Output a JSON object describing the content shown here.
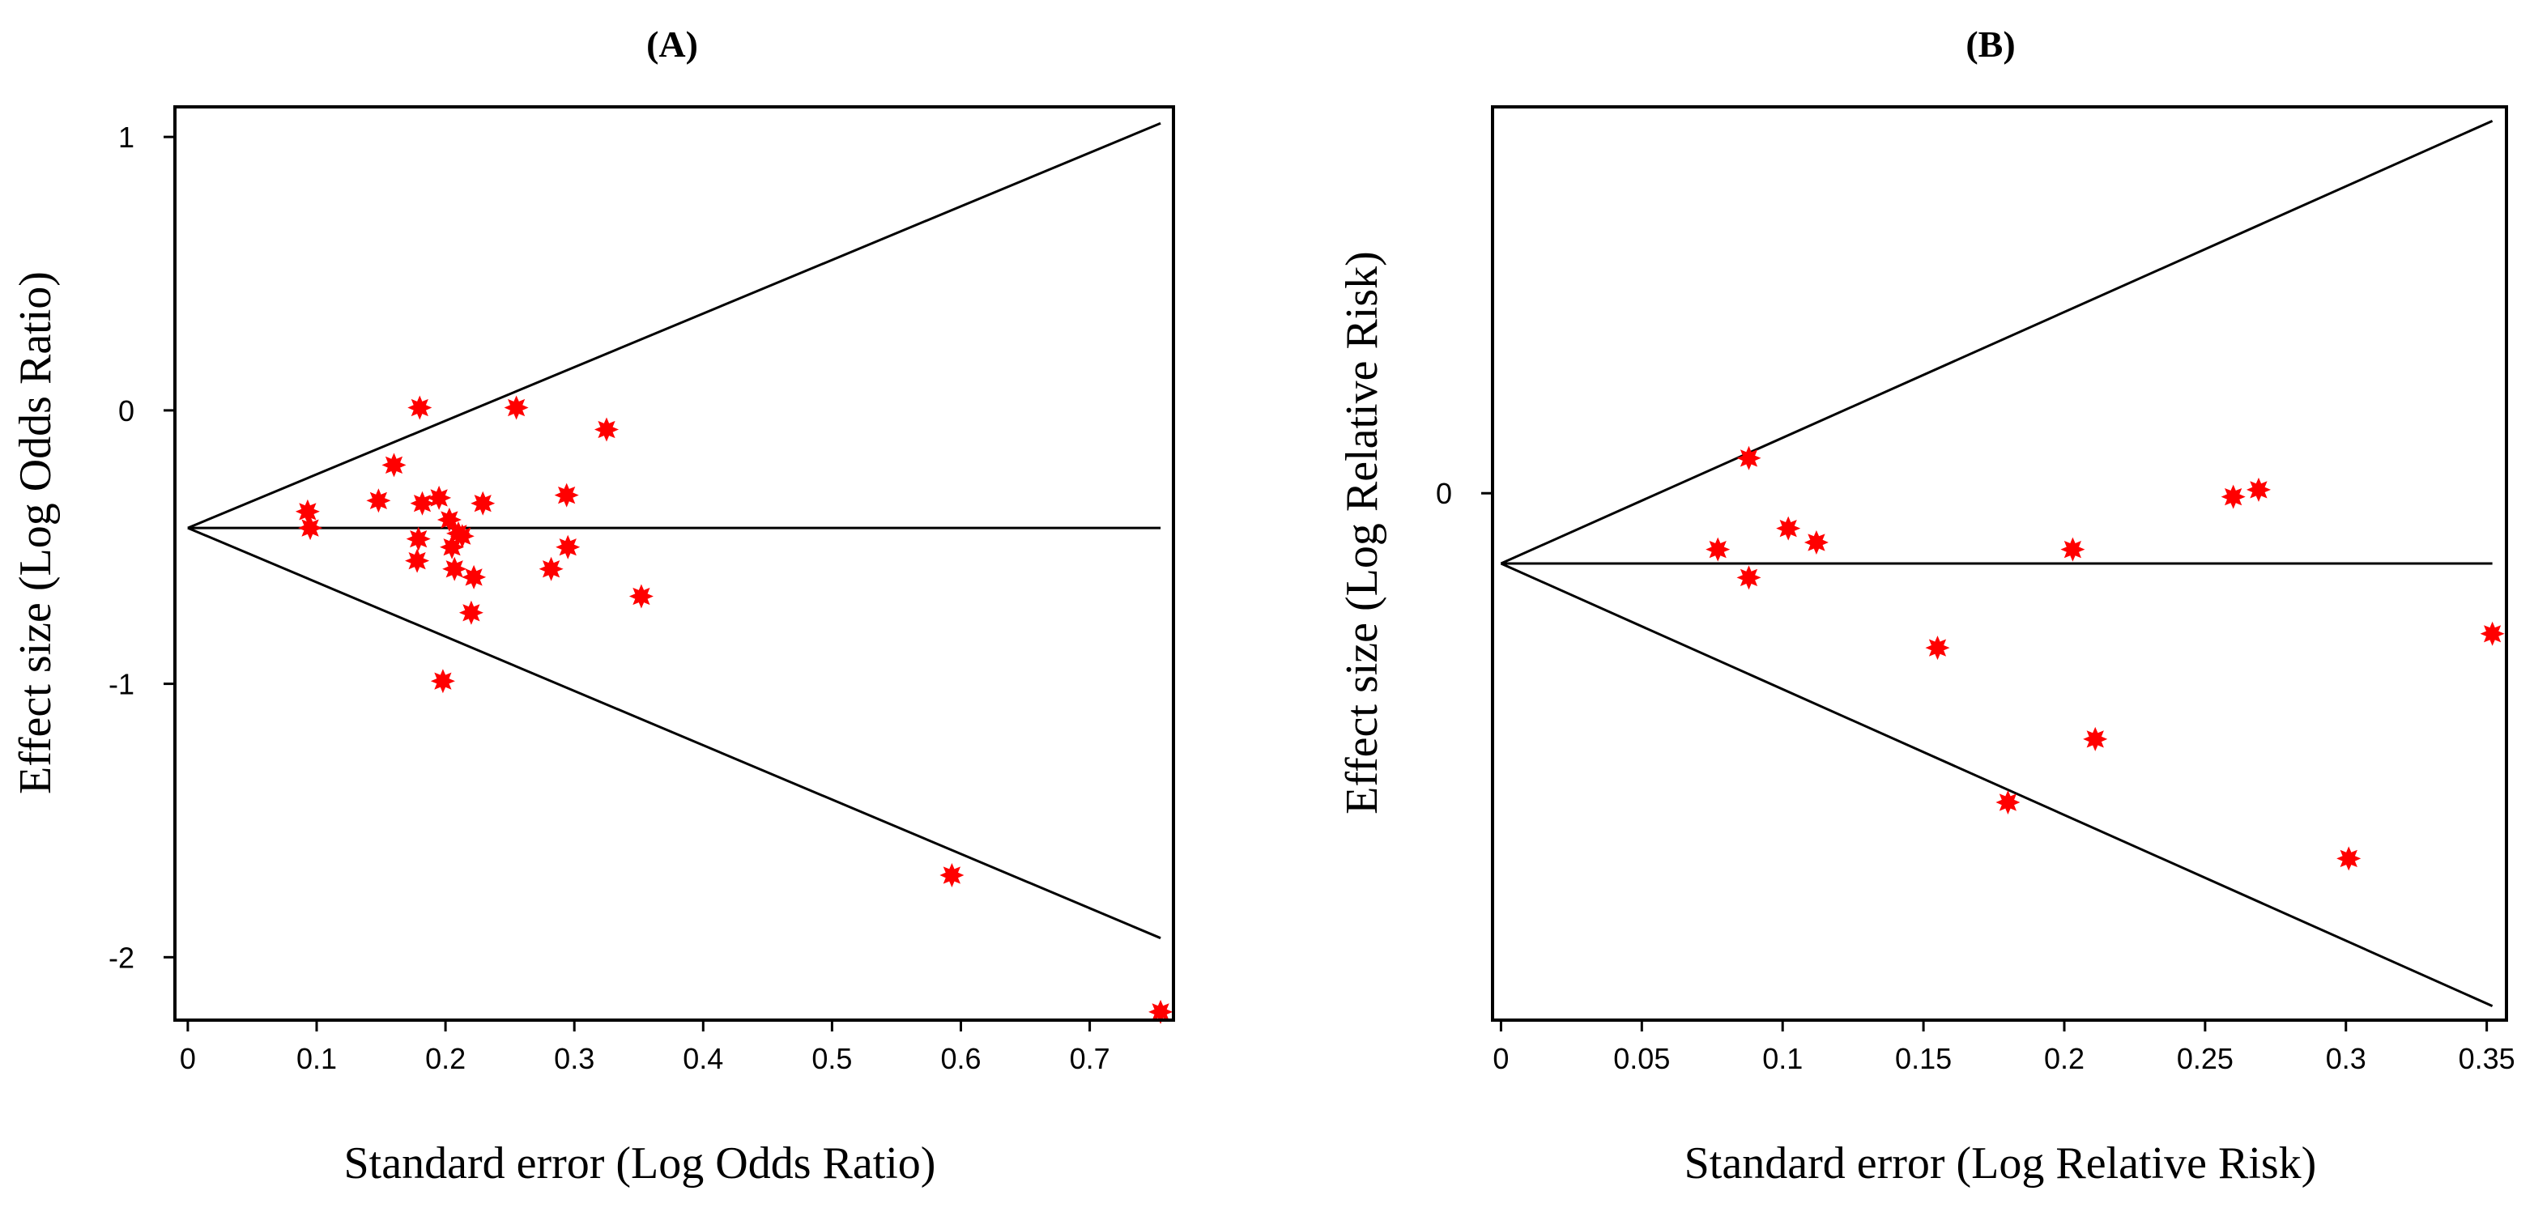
{
  "colors": {
    "point": "#ff0000",
    "line": "#000000",
    "background": "#ffffff"
  },
  "chart_data": [
    {
      "type": "scatter",
      "panel": "(A)",
      "title": "(A)",
      "xlabel": "Standard error (Log Odds Ratio)",
      "ylabel": "Effect size (Log Odds Ratio)",
      "xlim": [
        -0.01,
        0.765
      ],
      "ylim": [
        -2.23,
        1.11
      ],
      "xticks": [
        0,
        0.1,
        0.2,
        0.3,
        0.4,
        0.5,
        0.6,
        0.7
      ],
      "xtick_labels": [
        "0",
        "0.1",
        "0.2",
        "0.3",
        "0.4",
        "0.5",
        "0.6",
        "0.7"
      ],
      "yticks": [
        1,
        0,
        -1,
        -2
      ],
      "ytick_labels": [
        "1",
        "0",
        "-1",
        "-2"
      ],
      "pooled_effect": -0.43,
      "funnel": {
        "apex": [
          0,
          -0.43
        ],
        "upper_end": [
          0.755,
          1.05
        ],
        "lower_end": [
          0.755,
          -1.93
        ]
      },
      "x": [
        0.093,
        0.095,
        0.148,
        0.16,
        0.178,
        0.179,
        0.18,
        0.182,
        0.195,
        0.198,
        0.203,
        0.205,
        0.207,
        0.21,
        0.213,
        0.22,
        0.222,
        0.229,
        0.255,
        0.282,
        0.294,
        0.295,
        0.325,
        0.352,
        0.593,
        0.755
      ],
      "y": [
        -0.37,
        -0.43,
        -0.33,
        -0.2,
        -0.55,
        -0.47,
        0.01,
        -0.34,
        -0.32,
        -0.99,
        -0.4,
        -0.5,
        -0.58,
        -0.45,
        -0.46,
        -0.74,
        -0.61,
        -0.34,
        0.01,
        -0.58,
        -0.31,
        -0.5,
        -0.07,
        -0.68,
        -1.7,
        -2.2
      ]
    },
    {
      "type": "scatter",
      "panel": "(B)",
      "title": "(B)",
      "xlabel": "Standard error (Log Relative Risk)",
      "ylabel": "Effect size (Log Relative Risk)",
      "xlim": [
        -0.003,
        0.357
      ],
      "ylim": [
        -0.75,
        0.55
      ],
      "xticks": [
        0,
        0.05,
        0.1,
        0.15,
        0.2,
        0.25,
        0.3,
        0.35
      ],
      "xtick_labels": [
        "0",
        "0.05",
        "0.1",
        "0.15",
        "0.2",
        "0.25",
        "0.3",
        "0.35"
      ],
      "yticks": [
        0
      ],
      "ytick_labels": [
        "0"
      ],
      "pooled_effect": -0.1,
      "funnel": {
        "apex": [
          0,
          -0.1
        ],
        "upper_end": [
          0.352,
          0.53
        ],
        "lower_end": [
          0.352,
          -0.73
        ]
      },
      "x": [
        0.077,
        0.088,
        0.088,
        0.102,
        0.112,
        0.155,
        0.18,
        0.203,
        0.211,
        0.26,
        0.269,
        0.301,
        0.352
      ],
      "y": [
        -0.08,
        0.05,
        -0.12,
        -0.05,
        -0.07,
        -0.22,
        -0.44,
        -0.08,
        -0.35,
        -0.005,
        0.005,
        -0.52,
        -0.2
      ]
    }
  ]
}
